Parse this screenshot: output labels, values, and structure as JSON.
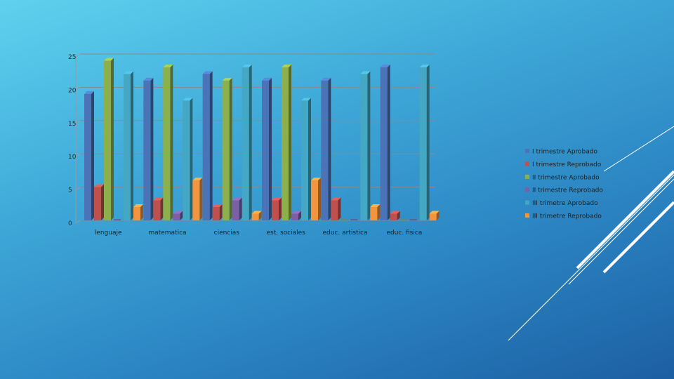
{
  "chart_data": {
    "type": "bar",
    "title": "",
    "xlabel": "",
    "ylabel": "",
    "ylim": [
      0,
      25
    ],
    "yticks": [
      0,
      5,
      10,
      15,
      20,
      25
    ],
    "grid": true,
    "legend_position": "right",
    "categories": [
      "lenguaje",
      "matematica",
      "ciencias",
      "est, sociales",
      "educ. artistica",
      "educ. fisica"
    ],
    "series": [
      {
        "name": "I trimestre Aprobado",
        "color": "#4a73b8",
        "values": [
          19,
          21,
          22,
          21,
          21,
          23
        ]
      },
      {
        "name": "I trimestre Reprobado",
        "color": "#c0504d",
        "values": [
          5,
          3,
          2,
          3,
          3,
          1
        ]
      },
      {
        "name": "II trimestre Aprobado",
        "color": "#8db04c",
        "values": [
          24,
          23,
          21,
          23,
          0,
          0
        ]
      },
      {
        "name": "II trimestre Reprobado",
        "color": "#7d5fa6",
        "values": [
          0,
          1,
          3,
          1,
          0,
          0
        ]
      },
      {
        "name": "III trimetre Aprobado",
        "color": "#44a7c3",
        "values": [
          22,
          18,
          23,
          18,
          22,
          23
        ]
      },
      {
        "name": "III trimetre Reprobado",
        "color": "#f3943e",
        "values": [
          2,
          6,
          1,
          6,
          2,
          1
        ]
      }
    ]
  },
  "decor": {
    "line_color": "#ffffff"
  }
}
